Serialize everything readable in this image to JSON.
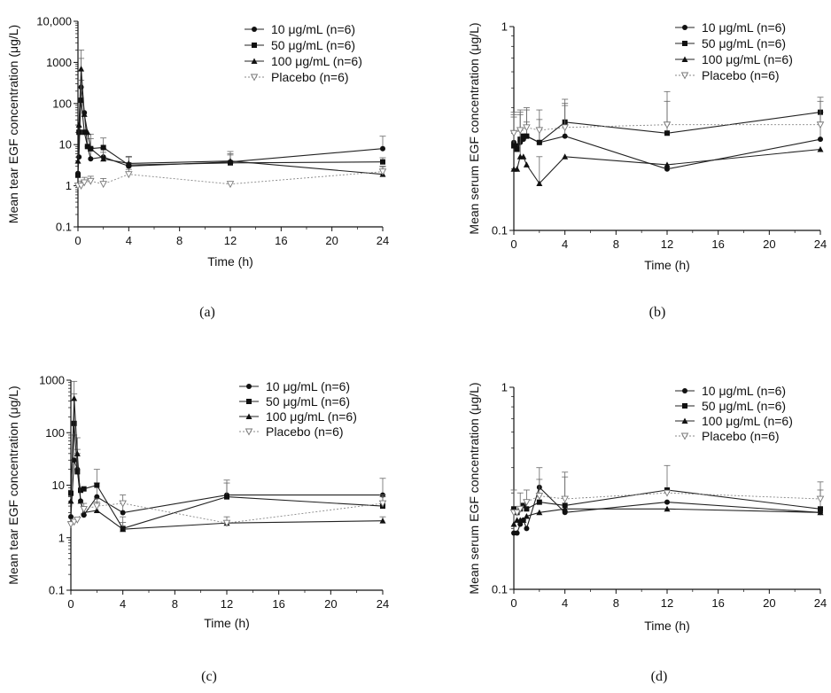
{
  "chart_data": [
    {
      "id": "a",
      "type": "line",
      "caption": "(a)",
      "xlabel": "Time (h)",
      "ylabel": "Mean tear EGF concentration (μg/L)",
      "yscale": "log",
      "xlim": [
        0,
        24
      ],
      "ylim": [
        0.1,
        10000
      ],
      "x_ticks": [
        "0",
        "4",
        "8",
        "12",
        "16",
        "20",
        "24"
      ],
      "y_ticks": [
        "0.1",
        "1",
        "10",
        "100",
        "1000",
        "10,000"
      ],
      "series": [
        {
          "name": "10 μg/mL (n=6)",
          "style": "circle",
          "x": [
            0,
            0.08,
            0.25,
            0.5,
            0.75,
            1,
            2,
            4,
            12,
            24
          ],
          "y": [
            2,
            5,
            250,
            60,
            9,
            4.5,
            5,
            3,
            3.8,
            8
          ],
          "err": [
            null,
            null,
            1000,
            null,
            null,
            4,
            3,
            2,
            3,
            8
          ]
        },
        {
          "name": "50 μg/mL (n=6)",
          "style": "square",
          "x": [
            0,
            0.08,
            0.25,
            0.5,
            0.75,
            1,
            2,
            4,
            12,
            24
          ],
          "y": [
            1.8,
            20,
            120,
            20,
            9,
            8,
            8.5,
            3.2,
            3.6,
            3.8
          ],
          "err": [
            null,
            null,
            250,
            null,
            null,
            6,
            6,
            2,
            2,
            1
          ]
        },
        {
          "name": "100 μg/mL (n=6)",
          "style": "triangle",
          "x": [
            0,
            0.08,
            0.25,
            0.5,
            0.75,
            1,
            2,
            4,
            12,
            24
          ],
          "y": [
            4,
            30,
            700,
            55,
            20,
            8,
            4.5,
            3.5,
            4,
            1.9
          ],
          "err": [
            null,
            null,
            1300,
            null,
            null,
            10,
            2,
            1.5,
            2,
            1
          ]
        },
        {
          "name": "Placebo (n=6)",
          "style": "open-triangle",
          "dashed": true,
          "x": [
            0,
            0.25,
            0.5,
            1,
            2,
            4,
            12,
            24
          ],
          "y": [
            1,
            1,
            1.2,
            1.3,
            1.1,
            1.9,
            1.1,
            2.2
          ],
          "err": [
            null,
            0.3,
            0.4,
            0.4,
            0.4,
            0.6,
            null,
            0.8
          ]
        }
      ]
    },
    {
      "id": "b",
      "type": "line",
      "caption": "(b)",
      "xlabel": "Time (h)",
      "ylabel": "Mean serum EGF concentration (μg/L)",
      "yscale": "log",
      "xlim": [
        0,
        24
      ],
      "ylim": [
        0.1,
        1
      ],
      "x_ticks": [
        "0",
        "4",
        "8",
        "12",
        "16",
        "20",
        "24"
      ],
      "y_ticks": [
        "0.1",
        "1"
      ],
      "series": [
        {
          "name": "10 μg/mL (n=6)",
          "style": "circle",
          "x": [
            0,
            0.25,
            0.5,
            0.75,
            1,
            2,
            4,
            12,
            24
          ],
          "y": [
            0.27,
            0.26,
            0.27,
            0.28,
            0.29,
            0.27,
            0.29,
            0.2,
            0.28
          ],
          "err": [
            0.1,
            null,
            0.1,
            null,
            0.1,
            0.08,
            0.12,
            null,
            0.1
          ]
        },
        {
          "name": "50 μg/mL (n=6)",
          "style": "square",
          "x": [
            0,
            0.25,
            0.5,
            0.75,
            1,
            2,
            4,
            12,
            24
          ],
          "y": [
            0.26,
            0.25,
            0.28,
            0.29,
            0.29,
            0.27,
            0.34,
            0.3,
            0.38
          ],
          "err": [
            0.1,
            null,
            0.1,
            null,
            0.05,
            0.05,
            0.1,
            0.18,
            0.07
          ]
        },
        {
          "name": "100 μg/mL (n=6)",
          "style": "triangle",
          "x": [
            0,
            0.25,
            0.5,
            0.75,
            1,
            2,
            4,
            12,
            24
          ],
          "y": [
            0.2,
            0.2,
            0.23,
            0.23,
            0.21,
            0.17,
            0.23,
            0.21,
            0.25
          ],
          "err": [
            null,
            null,
            0.08,
            null,
            null,
            0.06,
            null,
            null,
            null
          ]
        },
        {
          "name": "Placebo (n=6)",
          "style": "open-triangle",
          "dashed": true,
          "x": [
            0,
            0.5,
            1,
            2,
            4,
            12,
            24
          ],
          "y": [
            0.3,
            0.31,
            0.32,
            0.31,
            0.32,
            0.33,
            0.33
          ],
          "err": [
            0.08,
            0.08,
            0.08,
            0.08,
            0.1,
            0.1,
            0.1
          ]
        }
      ]
    },
    {
      "id": "c",
      "type": "line",
      "caption": "(c)",
      "xlabel": "Time (h)",
      "ylabel": "Mean tear EGF concentration (μg/L)",
      "yscale": "log",
      "xlim": [
        0,
        24
      ],
      "ylim": [
        0.1,
        1000
      ],
      "x_ticks": [
        "0",
        "4",
        "8",
        "12",
        "16",
        "20",
        "24"
      ],
      "y_ticks": [
        "0.1",
        "1",
        "10",
        "100",
        "1000"
      ],
      "series": [
        {
          "name": "10 μg/mL (n=6)",
          "style": "circle",
          "x": [
            0,
            0.25,
            0.5,
            0.75,
            1,
            2,
            4,
            12,
            24
          ],
          "y": [
            2.5,
            30,
            20,
            5,
            2.7,
            6,
            3,
            6.5,
            6.5
          ],
          "err": [
            null,
            60,
            20,
            null,
            null,
            5,
            2,
            6,
            7
          ]
        },
        {
          "name": "50 μg/mL (n=6)",
          "style": "square",
          "x": [
            0,
            0.25,
            0.5,
            0.75,
            1,
            2,
            4,
            12,
            24
          ],
          "y": [
            7,
            150,
            18,
            8,
            8.5,
            10,
            1.5,
            6,
            4
          ],
          "err": [
            null,
            400,
            30,
            null,
            null,
            10,
            1,
            5,
            2
          ]
        },
        {
          "name": "100 μg/mL (n=6)",
          "style": "triangle",
          "x": [
            0,
            0.25,
            0.5,
            0.75,
            1,
            2,
            4,
            12,
            24
          ],
          "y": [
            5,
            450,
            40,
            5,
            3,
            3.3,
            1.45,
            1.9,
            2.1
          ],
          "err": [
            null,
            500,
            40,
            null,
            null,
            1.5,
            0.5,
            0.6,
            0.4
          ]
        },
        {
          "name": "Placebo (n=6)",
          "style": "open-triangle",
          "dashed": true,
          "x": [
            0,
            0.25,
            0.5,
            1,
            2,
            4,
            12,
            24
          ],
          "y": [
            1.8,
            2,
            2.2,
            3.5,
            4,
            4.5,
            1.9,
            4.5
          ],
          "err": [
            null,
            null,
            null,
            1,
            1.5,
            2,
            null,
            2
          ]
        }
      ]
    },
    {
      "id": "d",
      "type": "line",
      "caption": "(d)",
      "xlabel": "Time (h)",
      "ylabel": "Mean serum EGF concentration (μg/L)",
      "yscale": "log",
      "xlim": [
        0,
        24
      ],
      "ylim": [
        0.1,
        1
      ],
      "x_ticks": [
        "0",
        "4",
        "8",
        "12",
        "16",
        "20",
        "24"
      ],
      "y_ticks": [
        "0.1",
        "1"
      ],
      "series": [
        {
          "name": "10 μg/mL (n=6)",
          "style": "circle",
          "x": [
            0,
            0.25,
            0.5,
            0.75,
            1,
            2,
            4,
            12,
            24
          ],
          "y": [
            0.19,
            0.19,
            0.21,
            0.22,
            0.2,
            0.32,
            0.24,
            0.27,
            0.24
          ],
          "err": [
            0.06,
            null,
            null,
            null,
            null,
            0.08,
            0.12,
            null,
            null
          ]
        },
        {
          "name": "50 μg/mL (n=6)",
          "style": "square",
          "x": [
            0,
            0.25,
            0.5,
            0.75,
            1,
            2,
            4,
            12,
            24
          ],
          "y": [
            0.25,
            0.24,
            0.25,
            0.26,
            0.25,
            0.27,
            0.26,
            0.31,
            0.25
          ],
          "err": [
            0.06,
            null,
            0.05,
            null,
            null,
            0.08,
            null,
            0.1,
            0.06
          ]
        },
        {
          "name": "100 μg/mL (n=6)",
          "style": "triangle",
          "x": [
            0,
            0.25,
            0.5,
            0.75,
            1,
            2,
            4,
            12,
            24
          ],
          "y": [
            0.21,
            0.22,
            0.22,
            0.22,
            0.23,
            0.24,
            0.25,
            0.25,
            0.24
          ],
          "err": [
            null,
            null,
            null,
            null,
            null,
            null,
            null,
            null,
            null
          ]
        },
        {
          "name": "Placebo (n=6)",
          "style": "open-triangle",
          "dashed": true,
          "x": [
            0,
            0.25,
            0.5,
            1,
            2,
            4,
            12,
            24
          ],
          "y": [
            0.24,
            0.24,
            0.25,
            0.27,
            0.29,
            0.28,
            0.3,
            0.28
          ],
          "err": [
            null,
            null,
            null,
            0.04,
            null,
            0.1,
            null,
            0.06
          ]
        }
      ]
    }
  ]
}
